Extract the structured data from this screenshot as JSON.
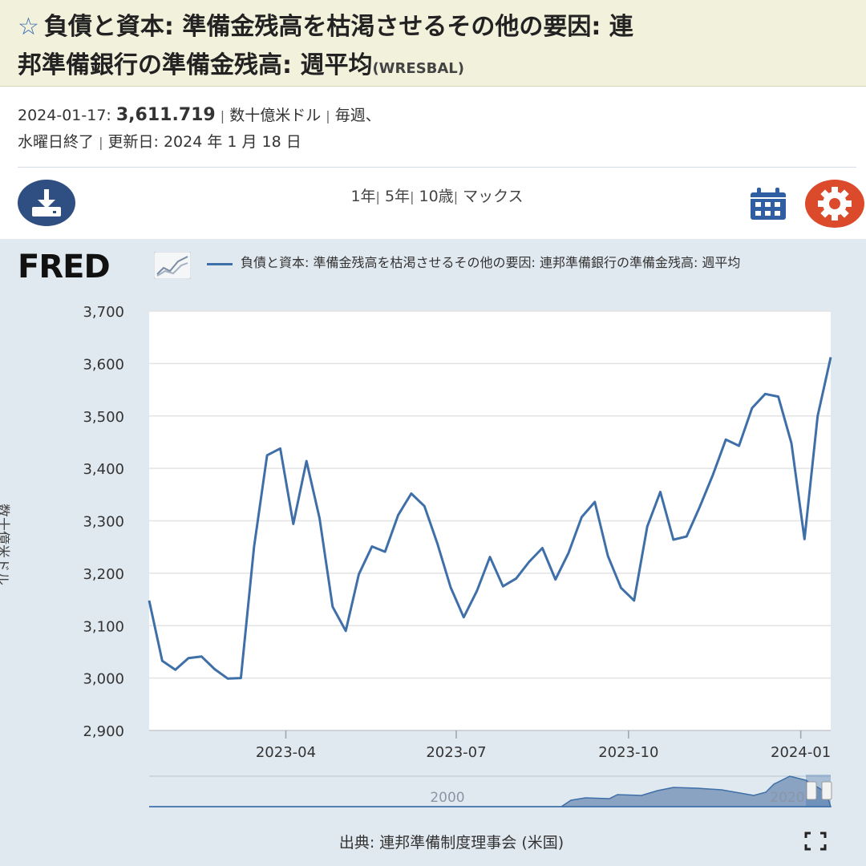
{
  "header": {
    "title": "負債と資本: 準備金残高を枯渇させるその他の要因: 連邦準備銀行の準備金残高: 週平均",
    "title_line1": "負債と資本: 準備金残高を枯渇させるその他の要因: 連",
    "title_line2": "邦準備銀行の準備金残高: 週平均",
    "series_id": "(WRESBAL)"
  },
  "meta": {
    "date": "2024-01-17:",
    "value": "3,611.719",
    "units": "数十億米ドル",
    "frequency": "毎週、",
    "frequency_detail": "水曜日終了",
    "updated": "更新日: 2024 年 1 月 18 日"
  },
  "toolbar": {
    "ranges": [
      "1年",
      "5年",
      "10歳",
      "マックス"
    ]
  },
  "chart": {
    "logo": "FRED",
    "legend": "負債と資本: 準備金残高を枯渇させるその他の要因: 連邦準備銀行の準備金残高: 週平均",
    "ylabel": "数十億米ドル",
    "navigator_labels": [
      "2000",
      "2020"
    ],
    "source": "出典: 連邦準備制度理事会 (米国)"
  },
  "colors": {
    "line": "#3f6fa8",
    "plot_background": "#ffffff",
    "chart_background": "#e1e9f0",
    "accent_download": "#2f4f82",
    "accent_settings": "#dc4a2c"
  },
  "chart_data": {
    "type": "line",
    "title": "",
    "xlabel": "",
    "ylabel": "数十億米ドル",
    "ylim": [
      2900,
      3700
    ],
    "yticks": [
      2900,
      3000,
      3100,
      3200,
      3300,
      3400,
      3500,
      3600,
      3700
    ],
    "ytick_labels": [
      "2,900",
      "3,000",
      "3,100",
      "3,200",
      "3,300",
      "3,400",
      "3,500",
      "3,600",
      "3,700"
    ],
    "xlim": [
      "2023-01-18",
      "2024-01-17"
    ],
    "xticks": [
      "2023-04-01",
      "2023-07-01",
      "2023-10-01",
      "2024-01-01"
    ],
    "xtick_labels": [
      "2023-04",
      "2023-07",
      "2023-10",
      "2024-01"
    ],
    "grid": true,
    "series": [
      {
        "name": "負債と資本: 準備金残高を枯渇させるその他の要因: 連邦準備銀行の準備金残高: 週平均",
        "x": [
          "2023-01-18",
          "2023-01-25",
          "2023-02-01",
          "2023-02-08",
          "2023-02-15",
          "2023-02-22",
          "2023-03-01",
          "2023-03-08",
          "2023-03-15",
          "2023-03-22",
          "2023-03-29",
          "2023-04-05",
          "2023-04-12",
          "2023-04-19",
          "2023-04-26",
          "2023-05-03",
          "2023-05-10",
          "2023-05-17",
          "2023-05-24",
          "2023-05-31",
          "2023-06-07",
          "2023-06-14",
          "2023-06-21",
          "2023-06-28",
          "2023-07-05",
          "2023-07-12",
          "2023-07-19",
          "2023-07-26",
          "2023-08-02",
          "2023-08-09",
          "2023-08-16",
          "2023-08-23",
          "2023-08-30",
          "2023-09-06",
          "2023-09-13",
          "2023-09-20",
          "2023-09-27",
          "2023-10-04",
          "2023-10-11",
          "2023-10-18",
          "2023-10-25",
          "2023-11-01",
          "2023-11-08",
          "2023-11-15",
          "2023-11-22",
          "2023-11-29",
          "2023-12-06",
          "2023-12-13",
          "2023-12-20",
          "2023-12-27",
          "2024-01-03",
          "2024-01-10",
          "2024-01-17"
        ],
        "values": [
          3148,
          3033,
          3016,
          3038,
          3041,
          3017,
          2999,
          3000,
          3250,
          3425,
          3438,
          3294,
          3414,
          3305,
          3136,
          3090,
          3198,
          3251,
          3241,
          3311,
          3352,
          3328,
          3256,
          3173,
          3116,
          3166,
          3231,
          3175,
          3190,
          3222,
          3248,
          3188,
          3239,
          3307,
          3336,
          3233,
          3172,
          3148,
          3289,
          3355,
          3264,
          3270,
          3326,
          3387,
          3455,
          3443,
          3515,
          3542,
          3537,
          3448,
          3265,
          3500,
          3612
        ]
      }
    ]
  }
}
